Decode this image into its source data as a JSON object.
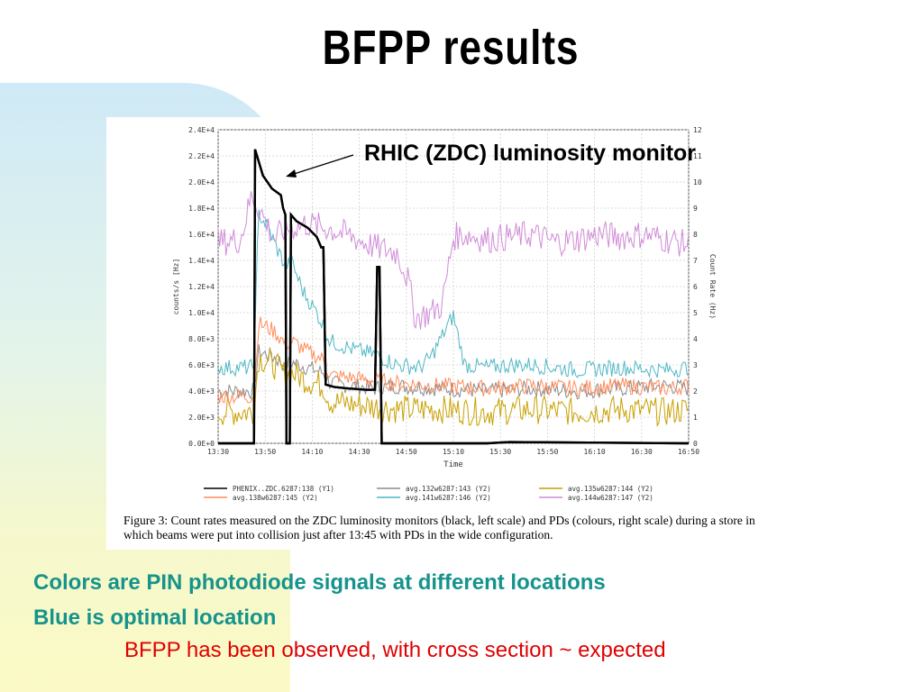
{
  "slide": {
    "title": "BFPP results",
    "callout": "RHIC (ZDC) luminosity monitor",
    "bullet1": "Colors are PIN photodiode signals at different locations",
    "bullet2": "Blue is optimal location",
    "bullet3": "BFPP has been observed, with cross section ~ expected",
    "caption": "Figure 3: Count rates measured on the ZDC luminosity monitors (black, left scale) and PDs (colours, right scale) during a store in which beams were put into collision just after 13:45 with PDs in the wide configuration."
  },
  "colors": {
    "teal_text": "#15938c",
    "red_text": "#e00000"
  },
  "chart_data": {
    "type": "line",
    "xlabel": "Time",
    "ylabel": "counts/s [Hz]",
    "y2label": "Count Rate (Hz)",
    "x_ticks": [
      "13:30",
      "13:50",
      "14:10",
      "14:30",
      "14:50",
      "15:10",
      "15:30",
      "15:50",
      "16:10",
      "16:30",
      "16:50"
    ],
    "y_ticks": [
      "0.0E+0",
      "2.0E+3",
      "4.0E+3",
      "6.0E+3",
      "8.0E+3",
      "1.0E+4",
      "1.2E+4",
      "1.4E+4",
      "1.6E+4",
      "1.8E+4",
      "2.0E+4",
      "2.2E+4",
      "2.4E+4"
    ],
    "y2_ticks": [
      "0",
      "1",
      "2",
      "3",
      "4",
      "5",
      "6",
      "7",
      "8",
      "9",
      "10",
      "11",
      "12"
    ],
    "ylim": [
      0,
      24000
    ],
    "y2lim": [
      0,
      12
    ],
    "xlim_minutes": [
      0,
      210
    ],
    "series": [
      {
        "name": "PHENIX..ZDC.6287:138 (Y1)",
        "color": "#000000",
        "axis": "y1",
        "points": [
          [
            0,
            0
          ],
          [
            16,
            0
          ],
          [
            16.5,
            22500
          ],
          [
            20,
            20500
          ],
          [
            24,
            19500
          ],
          [
            28,
            19000
          ],
          [
            29,
            18000
          ],
          [
            30,
            17500
          ],
          [
            30.5,
            0
          ],
          [
            32,
            0
          ],
          [
            32.5,
            17500
          ],
          [
            35,
            17000
          ],
          [
            40,
            16500
          ],
          [
            44,
            15800
          ],
          [
            45,
            15400
          ],
          [
            46,
            15000
          ],
          [
            47,
            15000
          ],
          [
            48,
            4500
          ],
          [
            52,
            4300
          ],
          [
            58,
            4200
          ],
          [
            66,
            4100
          ],
          [
            70,
            4100
          ],
          [
            71,
            13500
          ],
          [
            72,
            13500
          ],
          [
            73,
            0
          ],
          [
            120,
            0
          ],
          [
            130,
            100
          ],
          [
            210,
            0
          ]
        ]
      },
      {
        "name": "avg.132w6287:143 (Y2)",
        "color": "#8c8c8c",
        "axis": "y2",
        "points": [
          [
            0,
            2.0
          ],
          [
            16,
            2.0
          ],
          [
            18,
            3.5
          ],
          [
            25,
            3.3
          ],
          [
            30,
            3.0
          ],
          [
            33,
            3.1
          ],
          [
            40,
            2.9
          ],
          [
            47,
            2.7
          ],
          [
            50,
            2.3
          ],
          [
            60,
            2.2
          ],
          [
            70,
            2.1
          ],
          [
            80,
            2.2
          ],
          [
            100,
            2.1
          ],
          [
            120,
            2.0
          ],
          [
            140,
            2.1
          ],
          [
            160,
            2.0
          ],
          [
            180,
            2.1
          ],
          [
            200,
            2.2
          ],
          [
            210,
            2.1
          ]
        ]
      },
      {
        "name": "avg.135w6287:144 (Y2)",
        "color": "#c8a000",
        "axis": "y2",
        "points": [
          [
            0,
            1.2
          ],
          [
            16,
            1.2
          ],
          [
            18,
            3.3
          ],
          [
            25,
            3.0
          ],
          [
            30,
            2.6
          ],
          [
            33,
            2.7
          ],
          [
            40,
            2.4
          ],
          [
            47,
            2.2
          ],
          [
            50,
            1.6
          ],
          [
            60,
            1.5
          ],
          [
            70,
            1.4
          ],
          [
            80,
            1.3
          ],
          [
            100,
            1.3
          ],
          [
            120,
            1.2
          ],
          [
            140,
            1.3
          ],
          [
            160,
            1.2
          ],
          [
            180,
            1.3
          ],
          [
            200,
            1.2
          ],
          [
            210,
            1.3
          ]
        ]
      },
      {
        "name": "avg.138w6287:145 (Y2)",
        "color": "#ff8c5a",
        "axis": "y2",
        "points": [
          [
            0,
            1.8
          ],
          [
            16,
            1.8
          ],
          [
            18,
            4.6
          ],
          [
            25,
            4.3
          ],
          [
            30,
            3.8
          ],
          [
            33,
            3.9
          ],
          [
            40,
            3.5
          ],
          [
            47,
            3.2
          ],
          [
            50,
            2.6
          ],
          [
            60,
            2.5
          ],
          [
            70,
            2.4
          ],
          [
            80,
            2.3
          ],
          [
            100,
            2.2
          ],
          [
            120,
            2.1
          ],
          [
            140,
            2.2
          ],
          [
            160,
            2.1
          ],
          [
            180,
            2.2
          ],
          [
            200,
            2.1
          ],
          [
            210,
            2.2
          ]
        ]
      },
      {
        "name": "avg.141w6287:146 (Y2)",
        "color": "#4fb8c4",
        "axis": "y2",
        "points": [
          [
            0,
            2.9
          ],
          [
            16,
            2.9
          ],
          [
            18,
            8.8
          ],
          [
            22,
            8.3
          ],
          [
            26,
            7.5
          ],
          [
            30,
            6.8
          ],
          [
            33,
            6.9
          ],
          [
            38,
            5.8
          ],
          [
            44,
            5.0
          ],
          [
            47,
            4.5
          ],
          [
            50,
            3.9
          ],
          [
            60,
            3.6
          ],
          [
            70,
            3.4
          ],
          [
            75,
            3.2
          ],
          [
            80,
            3.0
          ],
          [
            90,
            2.9
          ],
          [
            95,
            3.3
          ],
          [
            105,
            4.9
          ],
          [
            110,
            3.0
          ],
          [
            120,
            2.9
          ],
          [
            130,
            3.0
          ],
          [
            140,
            3.0
          ],
          [
            160,
            2.8
          ],
          [
            180,
            2.9
          ],
          [
            200,
            2.8
          ],
          [
            210,
            2.9
          ]
        ]
      },
      {
        "name": "avg.144w6287:147 (Y2)",
        "color": "#d08cd8",
        "axis": "y2",
        "points": [
          [
            0,
            7.7
          ],
          [
            10,
            7.8
          ],
          [
            15,
            9.5
          ],
          [
            20,
            8.7
          ],
          [
            25,
            7.8
          ],
          [
            30,
            8.2
          ],
          [
            40,
            8.4
          ],
          [
            50,
            8.2
          ],
          [
            60,
            7.9
          ],
          [
            70,
            7.5
          ],
          [
            80,
            7.3
          ],
          [
            85,
            6.2
          ],
          [
            88,
            4.8
          ],
          [
            95,
            5.0
          ],
          [
            100,
            5.3
          ],
          [
            105,
            7.9
          ],
          [
            110,
            8.0
          ],
          [
            120,
            7.8
          ],
          [
            130,
            7.9
          ],
          [
            140,
            8.0
          ],
          [
            150,
            7.7
          ],
          [
            160,
            7.8
          ],
          [
            170,
            8.0
          ],
          [
            180,
            7.9
          ],
          [
            190,
            8.0
          ],
          [
            200,
            7.8
          ],
          [
            210,
            7.6
          ]
        ]
      }
    ]
  }
}
